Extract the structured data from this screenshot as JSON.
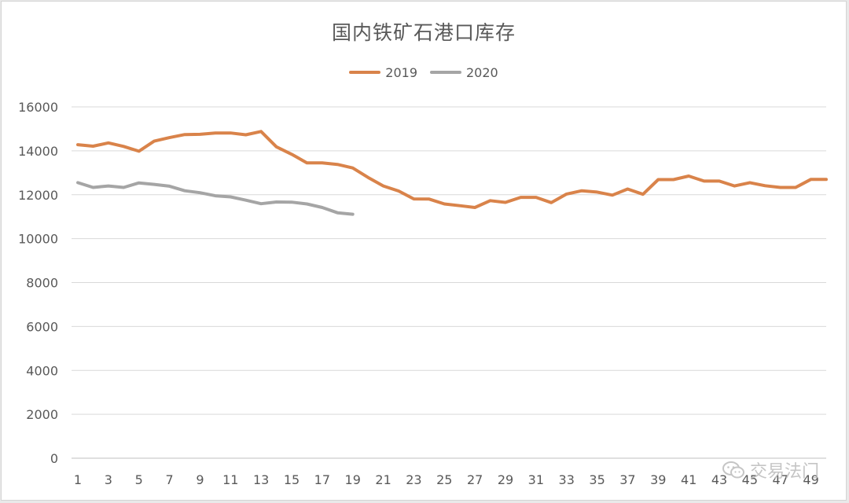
{
  "chart_data": {
    "type": "line",
    "title": "国内铁矿石港口库存",
    "xlabel": "",
    "ylabel": "",
    "ylim": [
      0,
      16000
    ],
    "yticks": [
      0,
      2000,
      4000,
      6000,
      8000,
      10000,
      12000,
      14000,
      16000
    ],
    "xlim": [
      1,
      50
    ],
    "xticks": [
      1,
      3,
      5,
      7,
      9,
      11,
      13,
      15,
      17,
      19,
      21,
      23,
      25,
      27,
      29,
      31,
      33,
      35,
      37,
      39,
      41,
      43,
      45,
      47,
      49
    ],
    "grid": true,
    "legend_position": "top",
    "series": [
      {
        "name": "2019",
        "color": "#d9834a",
        "x": [
          1,
          2,
          3,
          4,
          5,
          6,
          7,
          8,
          9,
          10,
          11,
          12,
          13,
          14,
          15,
          16,
          17,
          18,
          19,
          20,
          21,
          22,
          23,
          24,
          25,
          26,
          27,
          28,
          29,
          30,
          31,
          32,
          33,
          34,
          35,
          36,
          37,
          38,
          39,
          40,
          41,
          42,
          43,
          44,
          45,
          46,
          47,
          48,
          49,
          50
        ],
        "values": [
          14280,
          14210,
          14360,
          14200,
          13980,
          14440,
          14600,
          14740,
          14750,
          14810,
          14810,
          14730,
          14880,
          14180,
          13840,
          13450,
          13450,
          13380,
          13220,
          12790,
          12400,
          12170,
          11810,
          11800,
          11580,
          11500,
          11420,
          11730,
          11650,
          11880,
          11880,
          11640,
          12030,
          12180,
          12120,
          11980,
          12260,
          12020,
          12690,
          12690,
          12850,
          12620,
          12620,
          12400,
          12550,
          12410,
          12330,
          12330,
          12700,
          12700
        ]
      },
      {
        "name": "2020",
        "color": "#a5a5a5",
        "x": [
          1,
          2,
          3,
          4,
          5,
          6,
          7,
          8,
          9,
          10,
          11,
          12,
          13,
          14,
          15,
          16,
          17,
          18,
          19
        ],
        "values": [
          12550,
          12330,
          12400,
          12330,
          12540,
          12470,
          12390,
          12180,
          12090,
          11950,
          11900,
          11750,
          11590,
          11670,
          11660,
          11580,
          11420,
          11180,
          11110
        ]
      }
    ]
  },
  "watermark": {
    "text": "交易法门",
    "icon": "wechat-icon"
  }
}
